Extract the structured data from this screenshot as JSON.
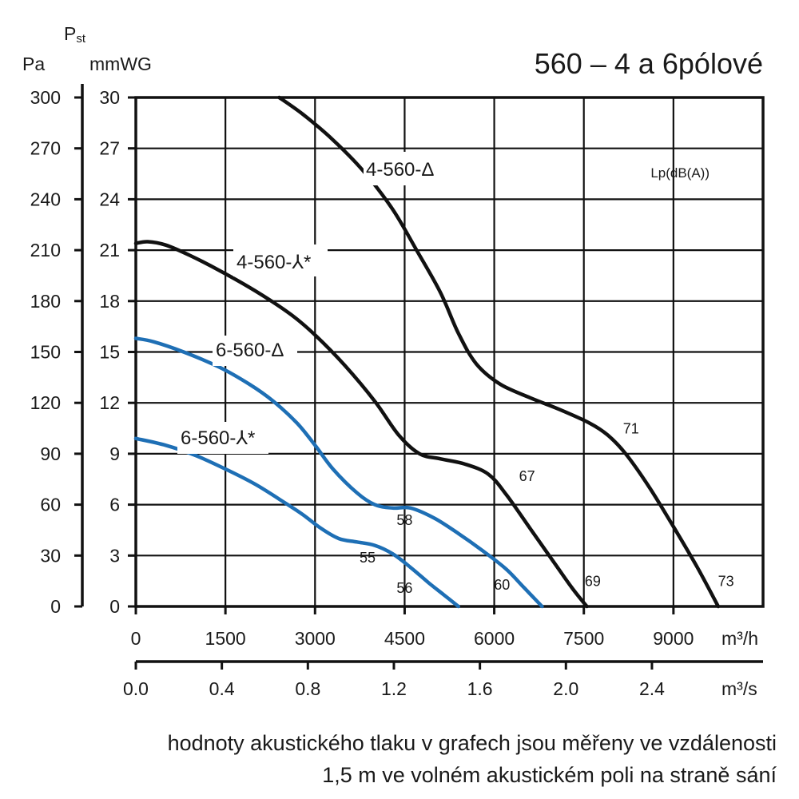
{
  "chart_data": {
    "type": "line",
    "title": "560 – 4 a 6pólové",
    "y_axis_symbol": "P",
    "y_axis_symbol_sub": "st",
    "y_unit_pa": "Pa",
    "y_unit_mmwg": "mmWG",
    "x_unit_m3h": "m³/h",
    "x_unit_m3s": "m³/s",
    "noise_header": "Lp(dB(A))",
    "xlim": [
      0,
      10500
    ],
    "ylim": [
      0,
      30
    ],
    "grid": true,
    "pa_ticks": [
      "0",
      "30",
      "60",
      "90",
      "120",
      "150",
      "180",
      "210",
      "240",
      "270",
      "300"
    ],
    "mmwg_ticks": [
      "0",
      "3",
      "6",
      "9",
      "12",
      "15",
      "18",
      "21",
      "24",
      "27",
      "30"
    ],
    "m3h_ticks": [
      "0",
      "1500",
      "3000",
      "4500",
      "6000",
      "7500",
      "9000"
    ],
    "m3s_ticks": [
      "0.0",
      "0.4",
      "0.8",
      "1.2",
      "1.6",
      "2.0",
      "2.4"
    ],
    "series": [
      {
        "name": "4-560-Δ",
        "color": "#111111",
        "x": [
          2400,
          2800,
          3300,
          3800,
          4300,
          4700,
          5100,
          5400,
          5700,
          6100,
          6600,
          7100,
          7600,
          7900,
          8200,
          8600,
          9000,
          9400,
          9750
        ],
        "y": [
          30,
          29,
          27.5,
          25.7,
          23.4,
          21,
          18.5,
          16.1,
          14.3,
          13.1,
          12.3,
          11.6,
          10.8,
          10.1,
          9,
          7,
          4.7,
          2.3,
          0
        ]
      },
      {
        "name": "4-560-⅄*",
        "color": "#111111",
        "x": [
          0,
          200,
          500,
          900,
          1400,
          2000,
          2600,
          3000,
          3500,
          4000,
          4400,
          4750,
          5100,
          5500,
          5900,
          6200,
          6600,
          7000,
          7300,
          7550
        ],
        "y": [
          21.4,
          21.5,
          21.3,
          20.7,
          19.8,
          18.6,
          17.2,
          16,
          14.2,
          12.1,
          10.1,
          9,
          8.7,
          8.4,
          7.8,
          6.6,
          4.6,
          2.6,
          1.1,
          0
        ]
      },
      {
        "name": "6-560-Δ",
        "color": "#1e6fb5",
        "x": [
          0,
          300,
          800,
          1400,
          1900,
          2300,
          2700,
          3000,
          3300,
          3700,
          4000,
          4300,
          4600,
          5000,
          5400,
          5800,
          6200,
          6500,
          6800
        ],
        "y": [
          15.8,
          15.6,
          15,
          14.1,
          13.1,
          12.1,
          10.8,
          9.5,
          8.1,
          6.7,
          6,
          5.8,
          5.8,
          5.2,
          4.3,
          3.3,
          2.2,
          1.1,
          0
        ]
      },
      {
        "name": "6-560-⅄*",
        "color": "#1e6fb5",
        "x": [
          0,
          500,
          1000,
          1500,
          2000,
          2500,
          2800,
          3100,
          3400,
          3700,
          4000,
          4300,
          4600,
          4900,
          5150,
          5400
        ],
        "y": [
          9.9,
          9.5,
          8.9,
          8.1,
          7.2,
          6.1,
          5.4,
          4.6,
          4,
          3.8,
          3.6,
          3.1,
          2.3,
          1.4,
          0.7,
          0
        ]
      }
    ],
    "annotations": [
      {
        "text": "71",
        "x": 8290,
        "y": 10.2
      },
      {
        "text": "67",
        "x": 6550,
        "y": 7.4
      },
      {
        "text": "58",
        "x": 4500,
        "y": 4.8
      },
      {
        "text": "55",
        "x": 3880,
        "y": 2.6
      },
      {
        "text": "56",
        "x": 4500,
        "y": 0.8
      },
      {
        "text": "60",
        "x": 6130,
        "y": 1.0
      },
      {
        "text": "69",
        "x": 7650,
        "y": 1.2
      },
      {
        "text": "73",
        "x": 9880,
        "y": 1.2
      }
    ]
  },
  "footnote": {
    "line1": "hodnoty akustického tlaku v grafech jsou měřeny ve vzdálenosti",
    "line2": "1,5 m ve volném akustickém poli na straně sání"
  }
}
